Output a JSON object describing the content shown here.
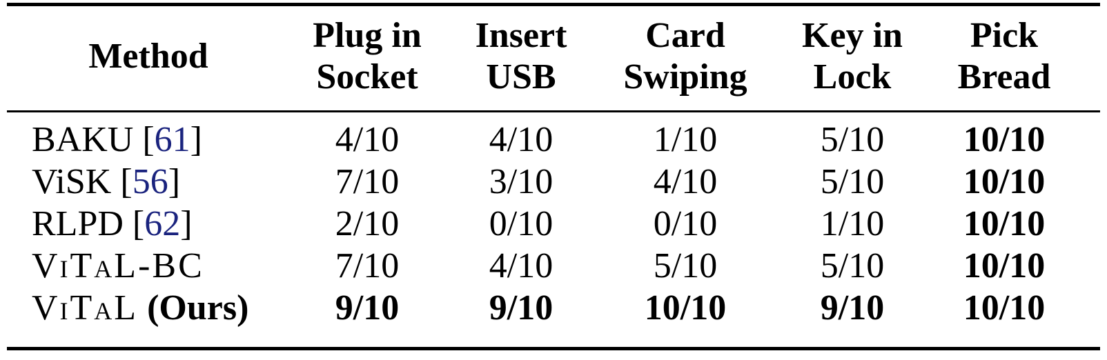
{
  "table": {
    "headers": [
      {
        "line1": "Method",
        "line2": ""
      },
      {
        "line1": "Plug in",
        "line2": "Socket"
      },
      {
        "line1": "Insert",
        "line2": "USB"
      },
      {
        "line1": "Card",
        "line2": "Swiping"
      },
      {
        "line1": "Key in",
        "line2": "Lock"
      },
      {
        "line1": "Pick",
        "line2": "Bread"
      }
    ],
    "rows": [
      {
        "method": "BAKU",
        "ref_open": " [",
        "ref": "61",
        "ref_close": "]",
        "values": [
          "4/10",
          "4/10",
          "1/10",
          "5/10",
          "10/10"
        ]
      },
      {
        "method": "ViSK",
        "ref_open": " [",
        "ref": "56",
        "ref_close": "]",
        "values": [
          "7/10",
          "3/10",
          "4/10",
          "5/10",
          "10/10"
        ]
      },
      {
        "method": "RLPD",
        "ref_open": " [",
        "ref": "62",
        "ref_close": "]",
        "values": [
          "2/10",
          "0/10",
          "0/10",
          "1/10",
          "10/10"
        ]
      },
      {
        "method": "ViTaL-BC",
        "values": [
          "7/10",
          "4/10",
          "5/10",
          "5/10",
          "10/10"
        ]
      },
      {
        "method": "ViTaL",
        "suffix": " (Ours)",
        "values": [
          "9/10",
          "9/10",
          "10/10",
          "9/10",
          "10/10"
        ]
      }
    ]
  }
}
